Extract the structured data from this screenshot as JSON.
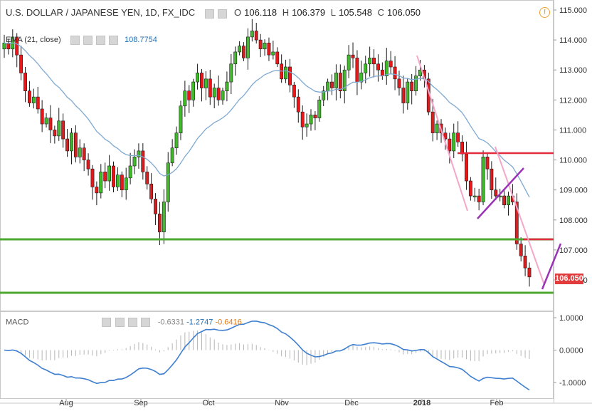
{
  "header": {
    "symbol": "U.S. DOLLAR / JAPANESE YEN, 1D, FX_IDC",
    "o_label": "O",
    "o_value": "106.118",
    "h_label": "H",
    "h_value": "106.379",
    "l_label": "L",
    "l_value": "105.548",
    "c_label": "C",
    "c_value": "106.050"
  },
  "indicator": {
    "label": "EMA (21, close)",
    "value": "108.7754"
  },
  "macd": {
    "label": "MACD",
    "v1": "-0.6331",
    "v2": "-1.2747",
    "v3": "-0.6416"
  },
  "last_price_badge": "106.050",
  "colors": {
    "up": "#3fbb29",
    "down": "#e3191b",
    "ema": "#7fa9d1",
    "macd_line": "#3f7fd0",
    "green_line": "#4ea830",
    "red_line": "#e32a3f",
    "pink_line": "#f6a6c8",
    "purple_line": "#9b33b7"
  },
  "chart_data": {
    "type": "candlestick",
    "title": "U.S. DOLLAR / JAPANESE YEN, 1D, FX_IDC",
    "x_ticks": [
      "Aug",
      "Sep",
      "Oct",
      "Nov",
      "Dec",
      "2018",
      "Feb"
    ],
    "y_ticks": [
      "115.000",
      "114.000",
      "113.000",
      "112.000",
      "111.000",
      "110.000",
      "109.000",
      "108.000",
      "107.000",
      "106.000"
    ],
    "ylim": [
      105.5,
      115.1
    ],
    "macd_ticks": [
      "1.0000",
      "0.0000",
      "-1.0000"
    ],
    "macd_ylim": [
      -1.3,
      1.0
    ],
    "closes": [
      113.9,
      113.7,
      114.1,
      113.5,
      112.9,
      112.3,
      111.9,
      112.1,
      111.7,
      111.2,
      111.4,
      111.0,
      110.8,
      111.3,
      110.7,
      110.3,
      110.9,
      110.1,
      110.4,
      110.0,
      109.7,
      109.1,
      108.9,
      109.6,
      109.3,
      109.8,
      109.1,
      109.5,
      109.0,
      109.4,
      109.8,
      110.1,
      110.3,
      109.6,
      109.2,
      108.7,
      108.2,
      107.6,
      108.6,
      109.9,
      110.4,
      110.9,
      111.8,
      112.3,
      112.0,
      112.6,
      112.9,
      112.4,
      112.7,
      112.1,
      112.4,
      112.0,
      112.3,
      112.6,
      113.2,
      113.6,
      113.8,
      113.4,
      114.1,
      114.3,
      114.0,
      113.7,
      113.9,
      113.5,
      113.6,
      113.2,
      112.7,
      113.1,
      112.5,
      112.1,
      111.6,
      111.1,
      111.2,
      111.5,
      111.4,
      112.0,
      112.3,
      112.6,
      112.4,
      112.9,
      112.3,
      113.0,
      113.5,
      113.4,
      112.6,
      112.9,
      113.2,
      113.4,
      113.2,
      113.0,
      112.8,
      113.3,
      113.1,
      112.7,
      112.4,
      111.9,
      112.6,
      112.3,
      112.8,
      113.0,
      112.7,
      111.6,
      110.9,
      111.2,
      110.9,
      110.7,
      110.3,
      110.9,
      110.6,
      110.2,
      109.3,
      108.8,
      108.8,
      108.6,
      110.1,
      109.7,
      109.0,
      108.8,
      108.8,
      108.5,
      108.8,
      108.6,
      107.2,
      106.8,
      106.4,
      106.1
    ]
  }
}
